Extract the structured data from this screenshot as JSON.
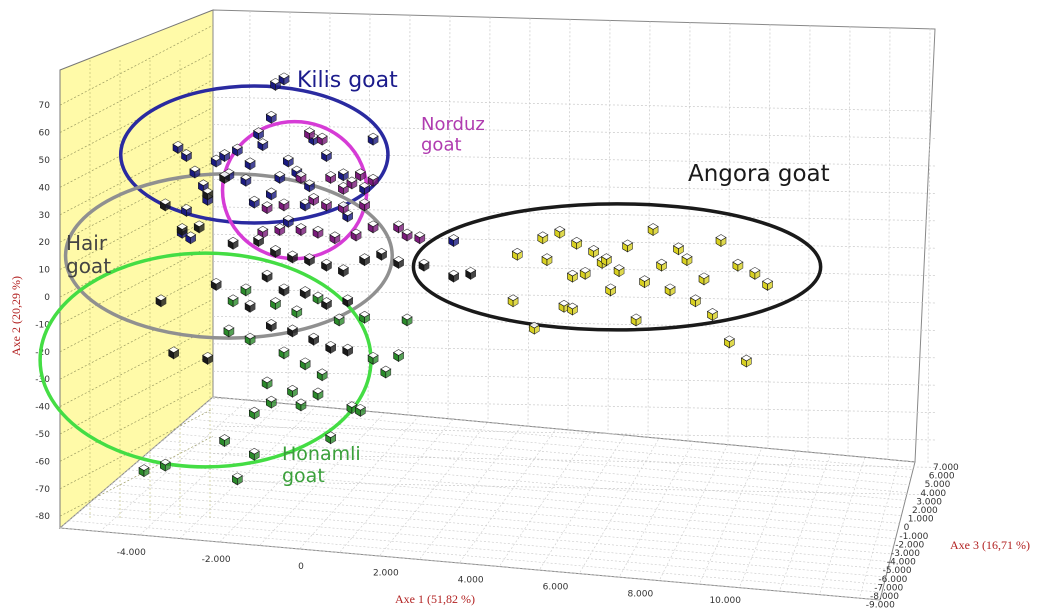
{
  "chart_data": {
    "type": "scatter",
    "projection": "3d",
    "xlabel": "Axe 1 (51,82 %)",
    "ylabel": "Axe 2 (20,29 %)",
    "zlabel": "Axe 3 (16,71 %)",
    "x_ticks": [
      "-4.000",
      "-2.000",
      "0",
      "2.000",
      "4.000",
      "6.000",
      "8.000",
      "10.000"
    ],
    "y_ticks": [
      "70",
      "60",
      "50",
      "40",
      "30",
      "20",
      "10",
      "0",
      "-10",
      "-20",
      "-30",
      "-40",
      "-50",
      "-60",
      "-70",
      "-80"
    ],
    "z_ticks": [
      "7.000",
      "6.000",
      "5.000",
      "4.000",
      "3.000",
      "2.000",
      "1.000",
      "0",
      "-1.000",
      "-2.000",
      "-3.000",
      "-4.000",
      "-5.000",
      "-6.000",
      "-7.000",
      "-8.000",
      "-9.000"
    ],
    "xlim": [
      -5000,
      11000
    ],
    "ylim": [
      -80,
      75
    ],
    "zlim": [
      -9000,
      7000
    ],
    "grid": true,
    "legend": "none",
    "groups": [
      {
        "label": "Kilis goat",
        "color": "#1c1c8c",
        "ellipse_color": "#2a2aa0",
        "point_fill": "#1a1a80",
        "center": [
          -1100,
          52
        ],
        "radius": [
          3150,
          25
        ]
      },
      {
        "label": "Norduz goat",
        "color": "#b03cb0",
        "ellipse_color": "#d63cd6",
        "point_fill": "#7a1a7a",
        "center": [
          -150,
          39
        ],
        "radius": [
          1700,
          25
        ]
      },
      {
        "label": "Hair goat",
        "color": "#444444",
        "ellipse_color": "#909090",
        "point_fill": "#1a1a1a",
        "center": [
          -1700,
          15
        ],
        "radius": [
          3850,
          30
        ]
      },
      {
        "label": "Honamli goat",
        "color": "#3aa03a",
        "ellipse_color": "#44dd44",
        "point_fill": "#2a8a2a",
        "center": [
          -2250,
          -23
        ],
        "radius": [
          3900,
          39
        ]
      },
      {
        "label": "Angora goat",
        "color": "#1a1a1a",
        "ellipse_color": "#1a1a1a",
        "point_fill": "#d8d020",
        "center": [
          7450,
          11
        ],
        "radius": [
          4800,
          23
        ]
      }
    ],
    "points": {
      "Kilis goat": [
        [
          -2900,
          55
        ],
        [
          -2700,
          52
        ],
        [
          -2500,
          46
        ],
        [
          -2300,
          41
        ],
        [
          -2700,
          32
        ],
        [
          -2200,
          36
        ],
        [
          -2000,
          50
        ],
        [
          -1800,
          52
        ],
        [
          -1500,
          54
        ],
        [
          -1200,
          49
        ],
        [
          -1000,
          60
        ],
        [
          -700,
          66
        ],
        [
          -600,
          78
        ],
        [
          -400,
          80
        ],
        [
          -900,
          56
        ],
        [
          -300,
          50
        ],
        [
          -100,
          46
        ],
        [
          300,
          58
        ],
        [
          600,
          52
        ],
        [
          -500,
          44
        ],
        [
          200,
          41
        ],
        [
          -700,
          38
        ],
        [
          100,
          34
        ],
        [
          -1100,
          35
        ],
        [
          -1300,
          43
        ],
        [
          -1700,
          45
        ],
        [
          -2600,
          22
        ],
        [
          -2800,
          24
        ],
        [
          1000,
          45
        ],
        [
          1700,
          58
        ],
        [
          1500,
          40
        ],
        [
          1100,
          30
        ],
        [
          -300,
          28
        ],
        [
          3600,
          21
        ]
      ],
      "Norduz goat": [
        [
          200,
          60
        ],
        [
          500,
          58
        ],
        [
          0,
          44
        ],
        [
          700,
          44
        ],
        [
          1000,
          40
        ],
        [
          1200,
          42
        ],
        [
          1400,
          45
        ],
        [
          1700,
          43
        ],
        [
          -800,
          33
        ],
        [
          -400,
          34
        ],
        [
          300,
          36
        ],
        [
          600,
          34
        ],
        [
          1000,
          33
        ],
        [
          -900,
          24
        ],
        [
          -500,
          25
        ],
        [
          0,
          25
        ],
        [
          400,
          24
        ],
        [
          800,
          22
        ],
        [
          1300,
          23
        ],
        [
          1700,
          26
        ],
        [
          2300,
          26
        ],
        [
          2500,
          23
        ],
        [
          2800,
          22
        ],
        [
          1500,
          34
        ]
      ],
      "Hair goat": [
        [
          -1800,
          44
        ],
        [
          -2200,
          38
        ],
        [
          -3200,
          34
        ],
        [
          -2800,
          25
        ],
        [
          -2400,
          26
        ],
        [
          -1600,
          20
        ],
        [
          -1000,
          21
        ],
        [
          -600,
          17
        ],
        [
          -200,
          15
        ],
        [
          200,
          14
        ],
        [
          600,
          12
        ],
        [
          1000,
          10
        ],
        [
          1500,
          14
        ],
        [
          1900,
          16
        ],
        [
          2300,
          13
        ],
        [
          2900,
          12
        ],
        [
          3600,
          8
        ],
        [
          4000,
          9
        ],
        [
          -3300,
          -1
        ],
        [
          -2000,
          5
        ],
        [
          -1200,
          -3
        ],
        [
          -800,
          8
        ],
        [
          -400,
          3
        ],
        [
          100,
          2
        ],
        [
          600,
          -2
        ],
        [
          1100,
          -1
        ],
        [
          -700,
          -10
        ],
        [
          -200,
          -12
        ],
        [
          300,
          -15
        ],
        [
          700,
          -18
        ],
        [
          1100,
          -19
        ],
        [
          -3000,
          -20
        ],
        [
          -2200,
          -22
        ]
      ],
      "Honamli goat": [
        [
          -1600,
          -1
        ],
        [
          -1300,
          3
        ],
        [
          -600,
          -2
        ],
        [
          -100,
          -5
        ],
        [
          400,
          0
        ],
        [
          900,
          -8
        ],
        [
          1500,
          -7
        ],
        [
          -1700,
          -12
        ],
        [
          -1200,
          -15
        ],
        [
          -400,
          -20
        ],
        [
          100,
          -24
        ],
        [
          500,
          -28
        ],
        [
          -800,
          -31
        ],
        [
          -200,
          -34
        ],
        [
          400,
          -35
        ],
        [
          -700,
          -38
        ],
        [
          0,
          -39
        ],
        [
          -1100,
          -42
        ],
        [
          1200,
          -40
        ],
        [
          -1800,
          -52
        ],
        [
          -1100,
          -57
        ],
        [
          -1500,
          -66
        ],
        [
          -3200,
          -61
        ],
        [
          -3700,
          -63
        ],
        [
          700,
          -51
        ],
        [
          1400,
          -41
        ],
        [
          2000,
          -27
        ],
        [
          1700,
          -22
        ],
        [
          2300,
          -21
        ],
        [
          2500,
          -8
        ]
      ],
      "Angora goat": [
        [
          5000,
          -1
        ],
        [
          5100,
          16
        ],
        [
          5500,
          -11
        ],
        [
          5700,
          22
        ],
        [
          5800,
          14
        ],
        [
          6100,
          24
        ],
        [
          6200,
          -3
        ],
        [
          6400,
          8
        ],
        [
          6500,
          20
        ],
        [
          6700,
          9
        ],
        [
          6900,
          17
        ],
        [
          7100,
          13
        ],
        [
          7300,
          3
        ],
        [
          7500,
          10
        ],
        [
          7700,
          19
        ],
        [
          7900,
          -8
        ],
        [
          8100,
          6
        ],
        [
          8300,
          25
        ],
        [
          8500,
          12
        ],
        [
          8700,
          3
        ],
        [
          8900,
          18
        ],
        [
          9100,
          14
        ],
        [
          9300,
          -1
        ],
        [
          9500,
          7
        ],
        [
          9700,
          -6
        ],
        [
          9900,
          21
        ],
        [
          10100,
          -16
        ],
        [
          10300,
          12
        ],
        [
          10500,
          -23
        ],
        [
          10700,
          9
        ],
        [
          11000,
          5
        ],
        [
          6400,
          -4
        ],
        [
          7200,
          14
        ]
      ]
    }
  }
}
